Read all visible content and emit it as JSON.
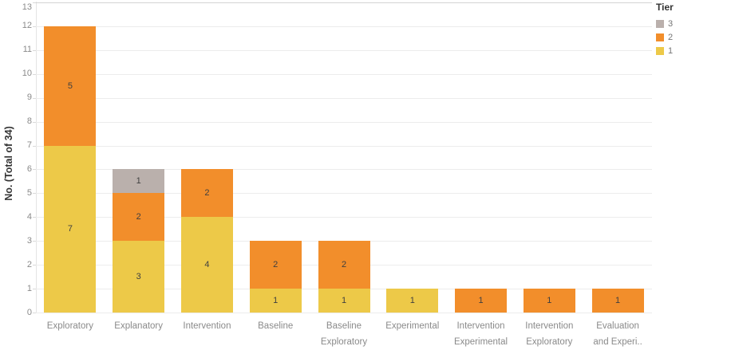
{
  "chart_data": {
    "type": "bar",
    "stacked": true,
    "title": "",
    "xlabel": "",
    "ylabel": "No. (Total of 34)",
    "ylim": [
      0,
      13
    ],
    "ytick_step": 1,
    "grid": true,
    "categories": [
      "Exploratory",
      "Explanatory",
      "Intervention",
      "Baseline",
      "Baseline Exploratory",
      "Experimental",
      "Intervention Experimental",
      "Intervention Exploratory",
      "Evaluation and Experi.."
    ],
    "category_label_lines": [
      [
        "Exploratory"
      ],
      [
        "Explanatory"
      ],
      [
        "Intervention"
      ],
      [
        "Baseline"
      ],
      [
        "Baseline",
        "Exploratory"
      ],
      [
        "Experimental"
      ],
      [
        "Intervention",
        "Experimental"
      ],
      [
        "Intervention",
        "Exploratory"
      ],
      [
        "Evaluation",
        "and Experi.."
      ]
    ],
    "series": [
      {
        "name": "1",
        "color": "#EDC948",
        "values": [
          7,
          3,
          4,
          1,
          1,
          1,
          0,
          0,
          0
        ]
      },
      {
        "name": "2",
        "color": "#F28E2B",
        "values": [
          5,
          2,
          2,
          2,
          2,
          0,
          1,
          1,
          1
        ]
      },
      {
        "name": "3",
        "color": "#BAB0AC",
        "values": [
          0,
          1,
          0,
          0,
          0,
          0,
          0,
          0,
          0
        ]
      }
    ],
    "legend": {
      "title": "Tier",
      "position": "top-right",
      "entries": [
        {
          "label": "3",
          "color": "#BAB0AC"
        },
        {
          "label": "2",
          "color": "#F28E2B"
        },
        {
          "label": "1",
          "color": "#EDC948"
        }
      ]
    }
  },
  "colors": {
    "background": "#ffffff",
    "gridline": "#ececec",
    "axis_rule": "#d4d4d4",
    "tick_label": "#8a8a8a",
    "value_label": "#3f3f3f",
    "axis_title": "#333333"
  }
}
